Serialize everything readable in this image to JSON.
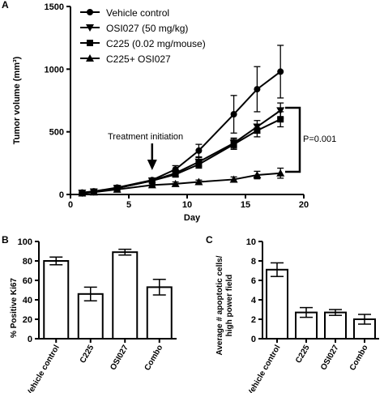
{
  "chart_data": [
    {
      "panel": "A",
      "type": "line",
      "xlabel": "Day",
      "ylabel": "Tumor volume (mm³)",
      "xlim": [
        0,
        20
      ],
      "ylim": [
        0,
        1500
      ],
      "xticks": [
        0,
        5,
        10,
        15,
        20
      ],
      "yticks": [
        0,
        500,
        1000,
        1500
      ],
      "legend_position": "top-left",
      "series": [
        {
          "name": "Vehicle control",
          "marker": "circle",
          "x": [
            1,
            2,
            4,
            7,
            9,
            11,
            14,
            16,
            18
          ],
          "y": [
            15,
            25,
            55,
            115,
            200,
            350,
            640,
            840,
            980
          ],
          "err": [
            5,
            5,
            8,
            15,
            30,
            50,
            150,
            180,
            210
          ]
        },
        {
          "name": "OSI027 (50 mg/kg)",
          "marker": "triangle-down",
          "x": [
            1,
            2,
            4,
            7,
            9,
            11,
            14,
            16,
            18
          ],
          "y": [
            12,
            22,
            50,
            110,
            170,
            260,
            410,
            540,
            670
          ],
          "err": [
            4,
            5,
            7,
            15,
            25,
            35,
            40,
            50,
            60
          ]
        },
        {
          "name": "C225 (0.02 mg/mouse)",
          "marker": "square",
          "x": [
            1,
            2,
            4,
            7,
            9,
            11,
            14,
            16,
            18
          ],
          "y": [
            12,
            22,
            50,
            110,
            160,
            240,
            400,
            510,
            600
          ],
          "err": [
            4,
            5,
            7,
            15,
            20,
            30,
            40,
            50,
            60
          ]
        },
        {
          "name": "C225+ OSI027",
          "marker": "triangle-up",
          "x": [
            1,
            2,
            4,
            7,
            9,
            11,
            14,
            16,
            18
          ],
          "y": [
            10,
            18,
            40,
            75,
            85,
            100,
            120,
            155,
            170
          ],
          "err": [
            3,
            4,
            5,
            10,
            15,
            15,
            20,
            30,
            40
          ]
        }
      ],
      "annotations": {
        "treatment": "Treatment initiation",
        "treatment_day": 7,
        "pvalue": "P=0.001"
      }
    },
    {
      "panel": "B",
      "type": "bar",
      "ylabel": "% Positive Ki67",
      "ylim": [
        0,
        100
      ],
      "yticks": [
        0,
        20,
        40,
        60,
        80,
        100
      ],
      "categories": [
        "Vehicle control",
        "C225",
        "OSI027",
        "Combo"
      ],
      "values": [
        80,
        46,
        89,
        53
      ],
      "err": [
        4,
        7,
        3,
        8
      ]
    },
    {
      "panel": "C",
      "type": "bar",
      "ylabel_line1": "Average # apoptotic cells/",
      "ylabel_line2": "high power field",
      "ylim": [
        0,
        10
      ],
      "yticks": [
        0,
        2,
        4,
        6,
        8,
        10
      ],
      "categories": [
        "Vehicle control",
        "C225",
        "OSI027",
        "Combo"
      ],
      "values": [
        7.1,
        2.7,
        2.7,
        2.0
      ],
      "err": [
        0.7,
        0.5,
        0.3,
        0.5
      ]
    }
  ]
}
